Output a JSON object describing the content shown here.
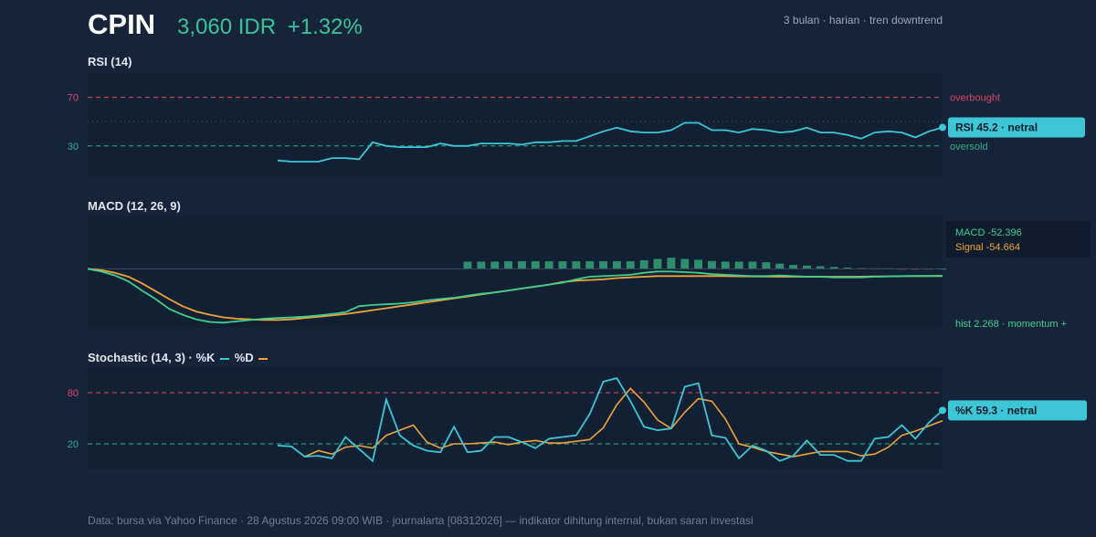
{
  "header": {
    "ticker": "CPIN",
    "price": "3,060 IDR",
    "change": "+1.32%",
    "meta": "3 bulan · harian · tren downtrend"
  },
  "footer": "Data: bursa via Yahoo Finance · 28 Agustus 2026 09:00 WIB · journalarta [08312026] — indikator dihitung internal, bukan saran investasi",
  "colors": {
    "background": "#16243a",
    "panel": "#112033",
    "rsi": "#3cc6d6",
    "macd": "#3ecf8e",
    "signal": "#f0a33a",
    "histogram": "#2e8f6c",
    "overbought": "#d9485f",
    "oversold": "#2fae85",
    "stoch_k": "#3cc6d6",
    "stoch_d": "#f0a33a"
  },
  "chart_data": [
    {
      "type": "line",
      "title": "RSI (14)",
      "ylim": [
        5,
        90
      ],
      "levels": [
        {
          "value": 70,
          "tick": "70",
          "label": "overbought"
        },
        {
          "value": 30,
          "tick": "30",
          "label": "oversold"
        }
      ],
      "midline": 50,
      "series": [
        {
          "values": [
            null,
            null,
            null,
            null,
            null,
            null,
            null,
            null,
            null,
            null,
            null,
            null,
            null,
            null,
            18,
            17,
            17,
            17,
            20,
            20,
            19,
            33,
            30,
            29,
            29,
            29,
            32,
            30,
            30,
            32,
            32,
            32,
            31,
            33,
            33,
            34,
            34,
            38,
            42,
            45,
            42,
            41,
            41,
            43,
            49,
            49,
            43,
            43,
            41,
            44,
            43,
            41,
            42,
            45,
            41,
            41,
            39,
            36,
            41,
            42,
            41,
            37,
            42,
            45.2
          ]
        }
      ],
      "badge": "RSI 45.2 · netral"
    },
    {
      "type": "line",
      "title": "MACD (12, 26, 9)",
      "ylim": [
        -450,
        400
      ],
      "legend_lines": [
        "MACD -52.396",
        "Signal -54.664"
      ],
      "histogram_note": "hist 2.268 · momentum +",
      "series": [
        {
          "name": "MACD",
          "values": [
            0,
            -20,
            -50,
            -95,
            -165,
            -230,
            -305,
            -350,
            -385,
            -405,
            -410,
            -400,
            -390,
            -380,
            -375,
            -370,
            -365,
            -355,
            -345,
            -330,
            -285,
            -275,
            -270,
            -265,
            -255,
            -240,
            -230,
            -220,
            -205,
            -190,
            -180,
            -165,
            -150,
            -135,
            -120,
            -105,
            -80,
            -60,
            -55,
            -50,
            -45,
            -30,
            -20,
            -20,
            -25,
            -30,
            -40,
            -45,
            -50,
            -55,
            -55,
            -50,
            -55,
            -60,
            -60,
            -65,
            -65,
            -65,
            -60,
            -58,
            -55,
            -54,
            -54,
            -52.396
          ]
        },
        {
          "name": "Signal",
          "values": [
            0,
            -10,
            -30,
            -60,
            -110,
            -170,
            -230,
            -285,
            -325,
            -350,
            -370,
            -380,
            -385,
            -390,
            -390,
            -385,
            -375,
            -365,
            -355,
            -345,
            -330,
            -315,
            -300,
            -285,
            -270,
            -255,
            -240,
            -225,
            -210,
            -195,
            -180,
            -165,
            -150,
            -135,
            -120,
            -100,
            -90,
            -85,
            -80,
            -70,
            -65,
            -60,
            -55,
            -55,
            -55,
            -55,
            -55,
            -55,
            -57,
            -58,
            -59,
            -60,
            -60,
            -60,
            -60,
            -60,
            -60,
            -59,
            -58,
            -57,
            -56,
            -55,
            -55,
            -54.664
          ]
        },
        {
          "name": "Histogram",
          "values": [
            0,
            0,
            0,
            0,
            0,
            0,
            0,
            0,
            0,
            0,
            0,
            0,
            0,
            0,
            0,
            0,
            0,
            0,
            0,
            0,
            0,
            0,
            0,
            0,
            0,
            0,
            0,
            0,
            55,
            55,
            55,
            58,
            58,
            58,
            58,
            58,
            58,
            58,
            58,
            58,
            58,
            65,
            75,
            85,
            75,
            70,
            60,
            55,
            55,
            55,
            50,
            40,
            30,
            25,
            20,
            15,
            10,
            6,
            4,
            4,
            -5,
            -8,
            -5,
            2.268
          ]
        }
      ]
    },
    {
      "type": "line",
      "title": "Stochastic (14, 3) · %K",
      "legend": [
        "%K",
        "%D"
      ],
      "ylim": [
        -10,
        110
      ],
      "levels": [
        {
          "value": 80,
          "tick": "80"
        },
        {
          "value": 20,
          "tick": "20"
        }
      ],
      "series": [
        {
          "name": "%K",
          "values": [
            null,
            null,
            null,
            null,
            null,
            null,
            null,
            null,
            null,
            null,
            null,
            null,
            null,
            null,
            18,
            17,
            5,
            6,
            3,
            28,
            14,
            0,
            72,
            30,
            18,
            12,
            10,
            40,
            10,
            12,
            28,
            28,
            22,
            15,
            26,
            28,
            30,
            55,
            93,
            97,
            70,
            40,
            36,
            38,
            87,
            91,
            30,
            27,
            3,
            18,
            12,
            0,
            6,
            24,
            7,
            7,
            0,
            0,
            26,
            28,
            42,
            26,
            45,
            59.3
          ]
        },
        {
          "name": "%D",
          "values": [
            null,
            null,
            null,
            null,
            null,
            null,
            null,
            null,
            null,
            null,
            null,
            null,
            null,
            null,
            null,
            null,
            5,
            12,
            8,
            16,
            18,
            15,
            30,
            36,
            42,
            22,
            15,
            20,
            20,
            21,
            22,
            19,
            22,
            24,
            21,
            21,
            23,
            25,
            39,
            66,
            85,
            69,
            48,
            38,
            57,
            73,
            70,
            49,
            20,
            16,
            11,
            8,
            5,
            8,
            11,
            11,
            11,
            6,
            8,
            16,
            30,
            35,
            41,
            47
          ]
        }
      ],
      "badge": "%K 59.3 · netral"
    }
  ]
}
